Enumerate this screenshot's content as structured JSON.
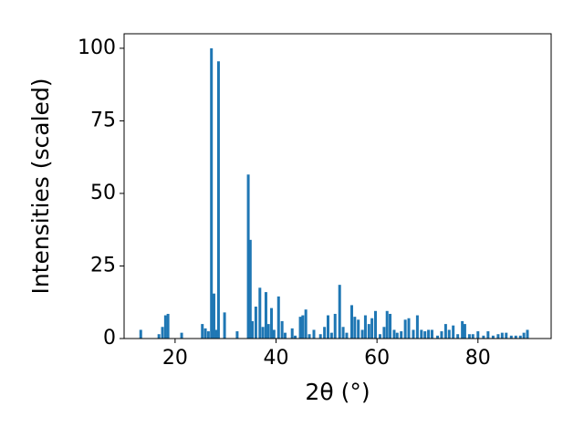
{
  "chart_data": {
    "type": "bar",
    "xlabel": "2θ (°)",
    "ylabel": "Intensities (scaled)",
    "color": "#1f77b4",
    "x": [
      13.2,
      16.8,
      17.5,
      18.1,
      18.6,
      21.3,
      25.4,
      26.0,
      26.6,
      27.2,
      27.7,
      28.2,
      28.6,
      29.8,
      32.3,
      34.5,
      34.9,
      35.3,
      36.0,
      36.8,
      37.4,
      38.0,
      38.5,
      39.1,
      39.6,
      40.5,
      41.2,
      41.8,
      43.2,
      43.8,
      44.8,
      45.3,
      45.9,
      46.6,
      47.5,
      48.8,
      49.6,
      50.3,
      51.0,
      51.7,
      52.6,
      53.3,
      54.0,
      55.0,
      55.6,
      56.3,
      57.1,
      57.7,
      58.4,
      59.0,
      59.7,
      60.6,
      61.4,
      62.0,
      62.6,
      63.4,
      64.0,
      64.8,
      65.6,
      66.3,
      67.2,
      68.0,
      68.8,
      69.5,
      70.2,
      70.9,
      72.0,
      72.8,
      73.6,
      74.3,
      75.1,
      76.0,
      76.9,
      77.4,
      78.3,
      79.0,
      80.0,
      81.1,
      82.0,
      83.0,
      84.0,
      84.8,
      85.6,
      86.6,
      87.5,
      88.4,
      89.1,
      89.8
    ],
    "values": [
      3,
      1.5,
      4,
      8,
      8.5,
      2,
      5,
      3.5,
      2.5,
      100,
      15.5,
      3,
      95.5,
      9,
      2.5,
      56.5,
      34,
      6,
      11,
      17.5,
      4,
      16,
      5,
      10.5,
      3,
      14.5,
      6,
      2,
      3.5,
      1,
      7.5,
      8,
      10,
      1.5,
      3,
      1.5,
      4,
      8,
      2,
      8.5,
      18.5,
      4,
      2,
      11.5,
      7.5,
      6.5,
      3,
      8,
      5,
      7,
      9.5,
      1.5,
      4,
      9.5,
      8.5,
      3,
      2,
      2.5,
      6.5,
      7,
      3,
      8,
      3,
      2.5,
      3,
      3,
      1,
      2.5,
      5,
      3,
      4.5,
      1.5,
      6,
      5,
      1.5,
      1.5,
      2.5,
      1,
      2.5,
      1,
      1.5,
      2,
      2,
      1,
      1,
      1,
      2,
      3
    ],
    "xlim": [
      9.9,
      94.5
    ],
    "ylim": [
      0,
      105
    ],
    "xticks": [
      20,
      40,
      60,
      80
    ],
    "yticks": [
      0,
      25,
      50,
      75,
      100
    ]
  }
}
